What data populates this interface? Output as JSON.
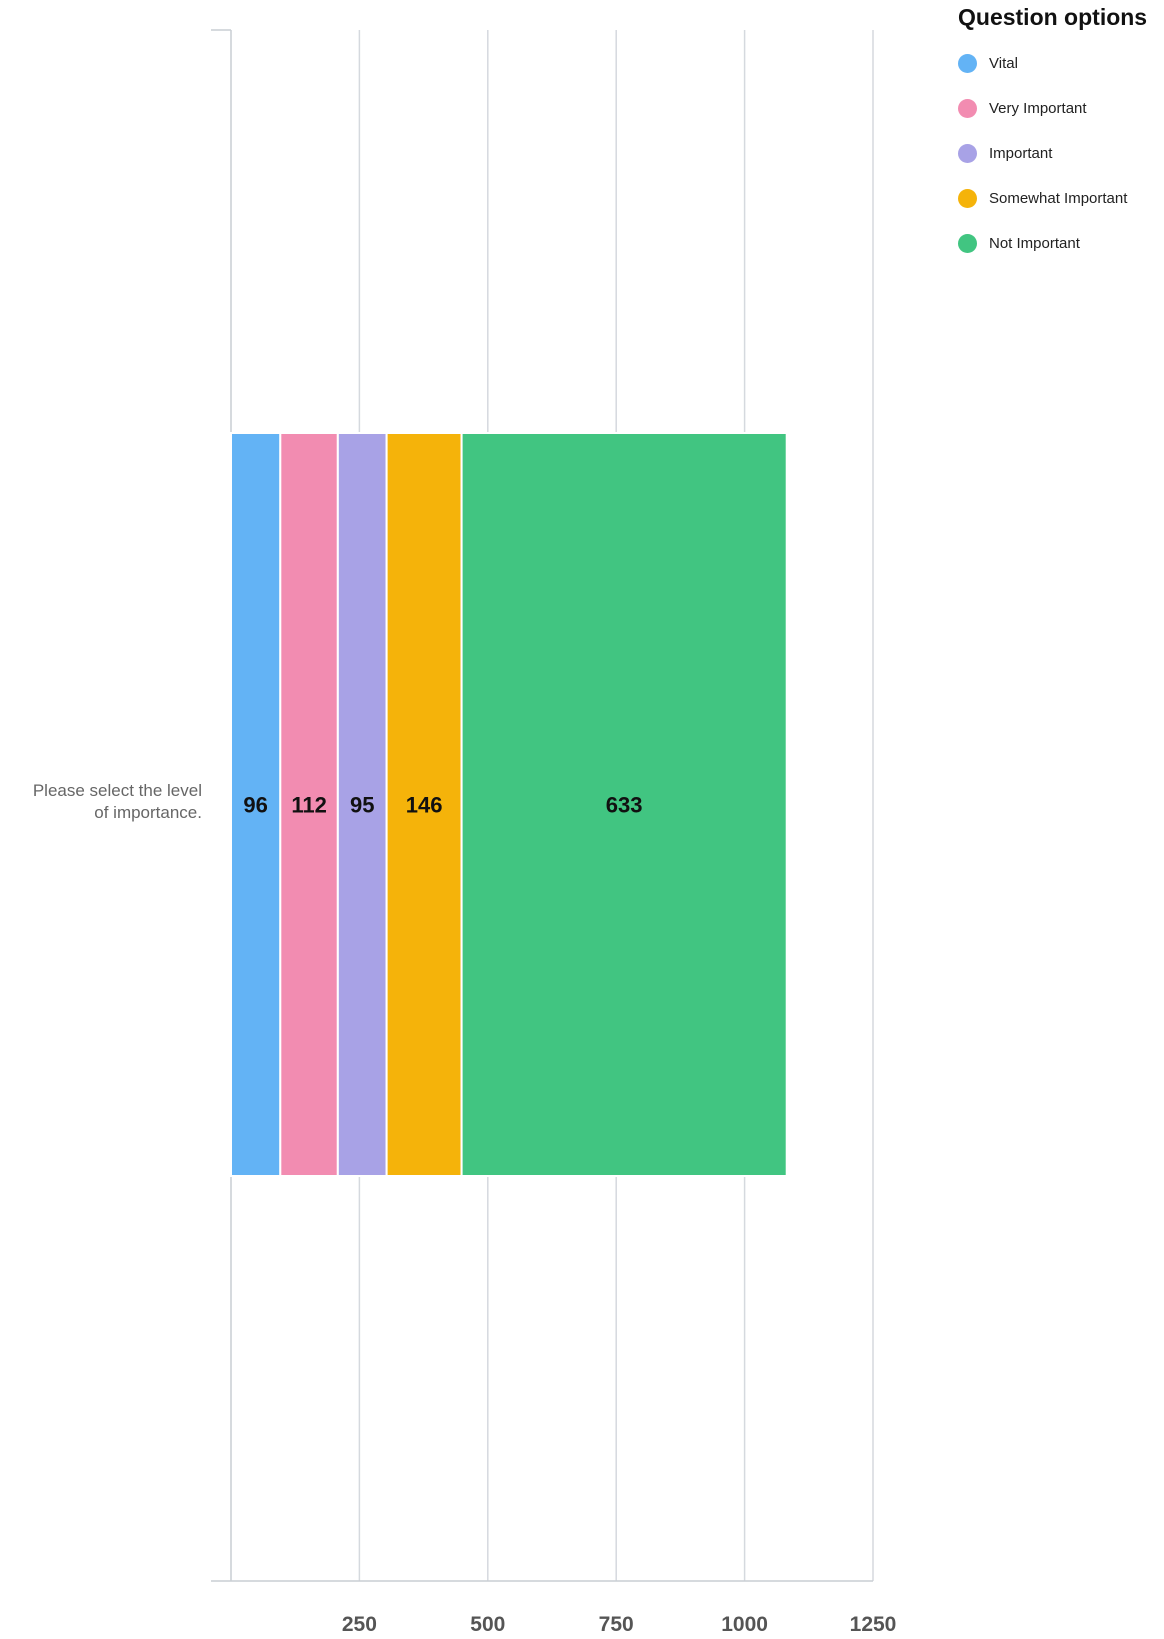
{
  "chart_data": {
    "type": "bar",
    "orientation": "horizontal",
    "stacked": true,
    "categories": [
      "Please select the level of importance."
    ],
    "category_label_lines": [
      "Please select the level",
      "of importance."
    ],
    "series": [
      {
        "name": "Vital",
        "values": [
          96
        ],
        "color": "#63b3f5"
      },
      {
        "name": "Very Important",
        "values": [
          112
        ],
        "color": "#f28cb1"
      },
      {
        "name": "Important",
        "values": [
          95
        ],
        "color": "#a8a2e6"
      },
      {
        "name": "Somewhat Important",
        "values": [
          146
        ],
        "color": "#f5b30a"
      },
      {
        "name": "Not Important",
        "values": [
          633
        ],
        "color": "#41c581"
      }
    ],
    "xlim": [
      0,
      1250
    ],
    "x_ticks": [
      250,
      500,
      750,
      1000,
      1250
    ],
    "grid": true,
    "legend": {
      "title": "Question options",
      "placement": "top-right"
    },
    "title": "",
    "xlabel": "",
    "ylabel": ""
  }
}
